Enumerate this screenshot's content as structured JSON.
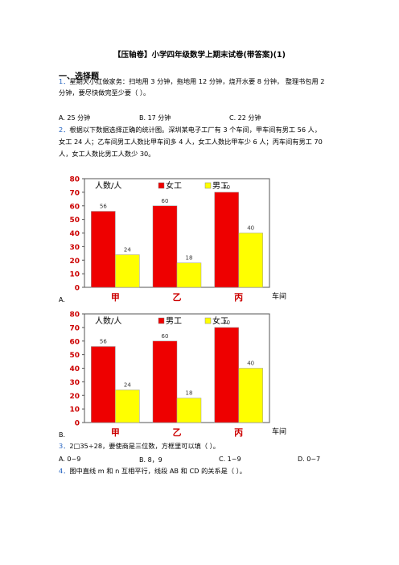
{
  "doc": {
    "title": "【压轴卷】小学四年级数学上期末试卷(带答案)(1)",
    "section1": "一、选择题",
    "q1": {
      "num": "1．",
      "line1": "星期天小红做家务：扫地用 3 分钟，拖地用 12 分钟，烧开水要 8 分钟， 整理书包用 2",
      "line2": "分钟，要尽快做完至少要（ ）。",
      "options": [
        "A. 25 分钟",
        "B. 17 分钟",
        "C. 22 分钟"
      ]
    },
    "q2": {
      "num": "2．",
      "line1": "根据以下数据选择正确的统计图。深圳某电子工厂有 3 个车间，甲车间有男工 56 人，",
      "line2": "女工 24 人；乙车间男工人数比甲车间多 4 人，女工人数比甲车少 6 人；丙车间有男工 70",
      "line3": "人，女工人数比男工人数少 30。",
      "optA": "A.",
      "optB": "B."
    },
    "q3": {
      "num": "3．",
      "text": "2□35÷28，要使商是三位数，方框里可以填（ ）。",
      "options": [
        "A. 0~9",
        "B. 8，9",
        "C. 1~9",
        "D. 0~7"
      ]
    },
    "q4": {
      "num": "4．",
      "text": "图中直线 m 和 n 互相平行，线段 AB 和 CD 的关系是（ ）。"
    }
  },
  "colors": {
    "red": "#ee0000",
    "yellow": "#ffff00",
    "red_text": "#cc0000",
    "num_blue": "#1f5fbf"
  },
  "chart_data": [
    {
      "type": "bar",
      "ylabel": "人数/人",
      "xlabel": "车间",
      "categories": [
        "甲",
        "乙",
        "丙"
      ],
      "ylim": [
        0,
        80
      ],
      "yticks": [
        0,
        10,
        20,
        30,
        40,
        50,
        60,
        70,
        80
      ],
      "grid": false,
      "legend": "top-center",
      "series": [
        {
          "name": "女工",
          "color": "#ee0000",
          "values": [
            56,
            60,
            70
          ]
        },
        {
          "name": "男工",
          "color": "#ffff00",
          "values": [
            24,
            18,
            40
          ]
        }
      ]
    },
    {
      "type": "bar",
      "ylabel": "人数/人",
      "xlabel": "车间",
      "categories": [
        "甲",
        "乙",
        "丙"
      ],
      "ylim": [
        0,
        80
      ],
      "yticks": [
        0,
        10,
        20,
        30,
        40,
        50,
        60,
        70,
        80
      ],
      "grid": false,
      "legend": "top-center",
      "series": [
        {
          "name": "男工",
          "color": "#ee0000",
          "values": [
            56,
            60,
            70
          ]
        },
        {
          "name": "女工",
          "color": "#ffff00",
          "values": [
            24,
            18,
            40
          ]
        }
      ]
    }
  ]
}
